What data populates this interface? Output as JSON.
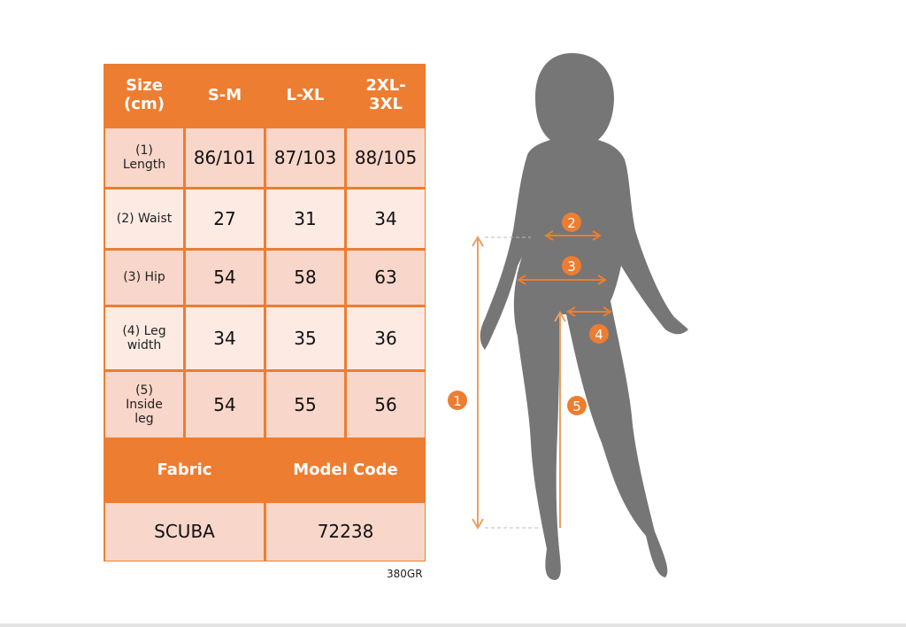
{
  "table": {
    "headers": [
      "Size\n(cm)",
      "S-M",
      "L-XL",
      "2XL-\n3XL"
    ],
    "rows": [
      {
        "label": "(1)\nLength",
        "values": [
          "86/101",
          "87/103",
          "88/105"
        ]
      },
      {
        "label": "(2) Waist",
        "values": [
          "27",
          "31",
          "34"
        ]
      },
      {
        "label": "(3) Hip",
        "values": [
          "54",
          "58",
          "63"
        ]
      },
      {
        "label": "(4) Leg\nwidth",
        "values": [
          "34",
          "35",
          "36"
        ]
      },
      {
        "label": "(5)\nInside\nleg",
        "values": [
          "54",
          "55",
          "56"
        ]
      }
    ],
    "fabric_label": "Fabric",
    "model_code_label": "Model Code",
    "fabric": "SCUBA",
    "model_code": "72238"
  },
  "weight": "380GR",
  "markers": [
    "1",
    "2",
    "3",
    "4",
    "5"
  ],
  "colors": {
    "accent": "#ED7D31",
    "row_dark": "#F8D6CA",
    "row_light": "#FCEAE3",
    "silhouette": "#757575"
  }
}
